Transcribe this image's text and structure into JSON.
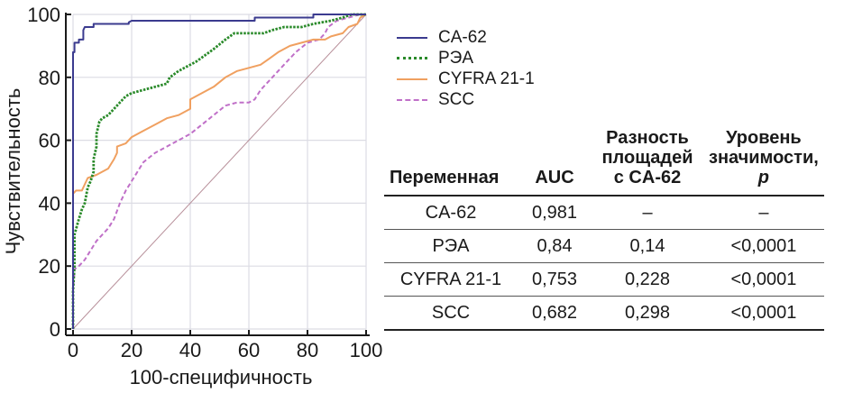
{
  "chart_data": {
    "type": "line",
    "title": "",
    "xlabel": "100-специфичность",
    "ylabel": "Чувствительность",
    "xlim": [
      0,
      100
    ],
    "ylim": [
      0,
      100
    ],
    "xticks": [
      0,
      20,
      40,
      60,
      80,
      100
    ],
    "yticks": [
      0,
      20,
      40,
      60,
      80,
      100
    ],
    "grid": true,
    "legend_position": "right",
    "series": [
      {
        "name": "CA-62",
        "color": "#3b3b8f",
        "style": "solid",
        "points": [
          [
            0,
            0
          ],
          [
            0,
            88
          ],
          [
            0.5,
            88
          ],
          [
            0.5,
            91
          ],
          [
            2,
            91
          ],
          [
            2,
            92
          ],
          [
            3.5,
            92
          ],
          [
            3.5,
            95
          ],
          [
            4,
            96
          ],
          [
            7,
            96
          ],
          [
            7,
            97
          ],
          [
            19,
            97
          ],
          [
            19,
            97.5
          ],
          [
            20,
            98
          ],
          [
            62,
            98
          ],
          [
            62,
            99
          ],
          [
            82,
            99
          ],
          [
            82,
            100
          ],
          [
            100,
            100
          ]
        ]
      },
      {
        "name": "РЭА",
        "color": "#2a8a2a",
        "style": "dotted",
        "points": [
          [
            0,
            0
          ],
          [
            0,
            12
          ],
          [
            0.5,
            20
          ],
          [
            0.5,
            30
          ],
          [
            2,
            35
          ],
          [
            3,
            38
          ],
          [
            4,
            40
          ],
          [
            5,
            45
          ],
          [
            6,
            47
          ],
          [
            7,
            50
          ],
          [
            7,
            54
          ],
          [
            8,
            58
          ],
          [
            8,
            62
          ],
          [
            9,
            66
          ],
          [
            10,
            67
          ],
          [
            12,
            68
          ],
          [
            14,
            70
          ],
          [
            16,
            72
          ],
          [
            18,
            74
          ],
          [
            20,
            75
          ],
          [
            24,
            76
          ],
          [
            28,
            77
          ],
          [
            32,
            78
          ],
          [
            33,
            80
          ],
          [
            36,
            82
          ],
          [
            38,
            83
          ],
          [
            40,
            84
          ],
          [
            42,
            85
          ],
          [
            45,
            87
          ],
          [
            48,
            89
          ],
          [
            52,
            92
          ],
          [
            55,
            94
          ],
          [
            60,
            94
          ],
          [
            65,
            94
          ],
          [
            68,
            95
          ],
          [
            72,
            96
          ],
          [
            78,
            96
          ],
          [
            82,
            97
          ],
          [
            88,
            98
          ],
          [
            92,
            99
          ],
          [
            95,
            100
          ],
          [
            100,
            100
          ]
        ]
      },
      {
        "name": "CYFRA 21-1",
        "color": "#f0a060",
        "style": "solid",
        "points": [
          [
            0,
            0
          ],
          [
            0,
            43
          ],
          [
            1,
            44
          ],
          [
            3,
            44
          ],
          [
            4,
            46
          ],
          [
            5,
            48
          ],
          [
            8,
            49
          ],
          [
            10,
            50
          ],
          [
            12,
            51
          ],
          [
            14,
            54
          ],
          [
            15,
            56
          ],
          [
            15,
            58
          ],
          [
            18,
            59
          ],
          [
            20,
            61
          ],
          [
            24,
            63
          ],
          [
            28,
            65
          ],
          [
            32,
            67
          ],
          [
            36,
            68
          ],
          [
            40,
            70
          ],
          [
            40,
            73
          ],
          [
            44,
            75
          ],
          [
            48,
            77
          ],
          [
            52,
            80
          ],
          [
            56,
            82
          ],
          [
            60,
            83
          ],
          [
            64,
            84
          ],
          [
            67,
            86
          ],
          [
            70,
            88
          ],
          [
            74,
            90
          ],
          [
            78,
            91
          ],
          [
            82,
            92
          ],
          [
            86,
            92
          ],
          [
            88,
            93
          ],
          [
            92,
            94
          ],
          [
            94,
            96
          ],
          [
            97,
            97
          ],
          [
            98,
            99
          ],
          [
            100,
            100
          ]
        ]
      },
      {
        "name": "SCC",
        "color": "#c070c8",
        "style": "dashed",
        "points": [
          [
            0,
            0
          ],
          [
            0,
            13
          ],
          [
            0.5,
            18
          ],
          [
            0.5,
            19
          ],
          [
            2,
            20
          ],
          [
            4,
            22
          ],
          [
            6,
            25
          ],
          [
            8,
            28
          ],
          [
            10,
            30
          ],
          [
            12,
            32
          ],
          [
            14,
            35
          ],
          [
            16,
            40
          ],
          [
            18,
            44
          ],
          [
            20,
            47
          ],
          [
            22,
            50
          ],
          [
            24,
            53
          ],
          [
            28,
            56
          ],
          [
            32,
            58
          ],
          [
            36,
            60
          ],
          [
            40,
            62
          ],
          [
            44,
            65
          ],
          [
            48,
            68
          ],
          [
            52,
            71
          ],
          [
            56,
            72
          ],
          [
            60,
            72
          ],
          [
            62,
            73
          ],
          [
            64,
            76
          ],
          [
            68,
            80
          ],
          [
            72,
            84
          ],
          [
            76,
            88
          ],
          [
            80,
            91
          ],
          [
            84,
            92
          ],
          [
            86,
            94
          ],
          [
            87,
            96
          ],
          [
            90,
            98
          ],
          [
            94,
            99
          ],
          [
            98,
            100
          ],
          [
            100,
            100
          ]
        ]
      },
      {
        "name": "reference",
        "color": "#b8909a",
        "style": "solid",
        "points": [
          [
            0,
            0
          ],
          [
            100,
            100
          ]
        ]
      }
    ]
  },
  "legend": [
    {
      "label": "CA-62",
      "color": "#3b3b8f",
      "style": "solid"
    },
    {
      "label": "РЭА",
      "color": "#2a8a2a",
      "style": "dotted"
    },
    {
      "label": "CYFRA 21-1",
      "color": "#f0a060",
      "style": "solid"
    },
    {
      "label": "SCC",
      "color": "#c070c8",
      "style": "dashed"
    }
  ],
  "table": {
    "headers": {
      "variable": "Переменная",
      "auc": "AUC",
      "diff_line1": "Разность",
      "diff_line2": "площадей",
      "diff_line3": "с CA-62",
      "p_line1": "Уровень",
      "p_line2": "значимости,",
      "p_line3": "p"
    },
    "rows": [
      {
        "variable": "CA-62",
        "auc": "0,981",
        "diff": "–",
        "p": "–"
      },
      {
        "variable": "РЭА",
        "auc": "0,84",
        "diff": "0,14",
        "p": "<0,0001"
      },
      {
        "variable": "CYFRA 21-1",
        "auc": "0,753",
        "diff": "0,228",
        "p": "<0,0001"
      },
      {
        "variable": "SCC",
        "auc": "0,682",
        "diff": "0,298",
        "p": "<0,0001"
      }
    ]
  }
}
